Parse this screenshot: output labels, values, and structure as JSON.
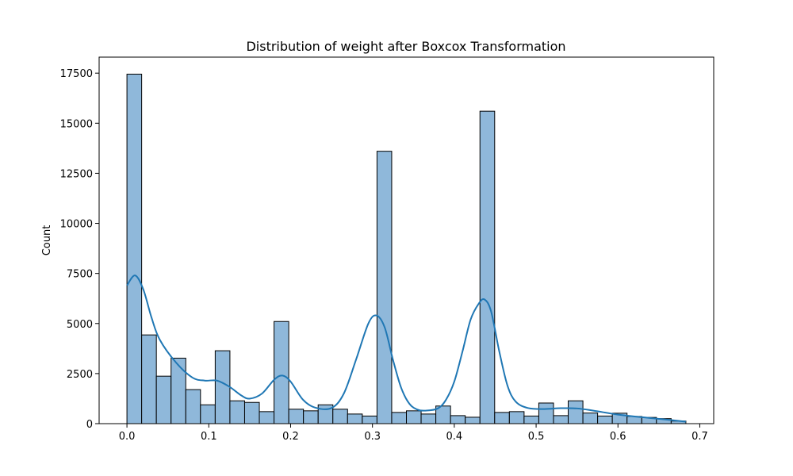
{
  "chart_data": {
    "type": "bar",
    "subtype": "histogram-with-kde",
    "title": "Distribution of weight after Boxcox Transformation",
    "xlabel": "",
    "ylabel": "Count",
    "xlim": [
      -0.034,
      0.717
    ],
    "ylim": [
      0,
      18300
    ],
    "grid": false,
    "legend": "none",
    "colors": {
      "bar_fill": "#8fb8da",
      "bar_edge": "#000000",
      "kde_line": "#1f77b4"
    },
    "x_ticks": [
      0.0,
      0.1,
      0.2,
      0.3,
      0.4,
      0.5,
      0.6,
      0.7
    ],
    "x_tick_labels": [
      "0.0",
      "0.1",
      "0.2",
      "0.3",
      "0.4",
      "0.5",
      "0.6",
      "0.7"
    ],
    "y_ticks": [
      0,
      2500,
      5000,
      7500,
      10000,
      12500,
      15000,
      17500
    ],
    "y_tick_labels": [
      "0",
      "2500",
      "5000",
      "7500",
      "10000",
      "12500",
      "15000",
      "17500"
    ],
    "bin_range": [
      0.0,
      0.683
    ],
    "bin_count": 38,
    "counts": [
      17450,
      4430,
      2370,
      3270,
      1700,
      940,
      3640,
      1140,
      1060,
      600,
      5100,
      720,
      640,
      940,
      720,
      480,
      380,
      13600,
      560,
      640,
      480,
      880,
      400,
      320,
      15600,
      560,
      600,
      380,
      1030,
      400,
      1140,
      530,
      380,
      520,
      360,
      310,
      250,
      130
    ],
    "kde": {
      "x": [
        0.0,
        0.01,
        0.02,
        0.03,
        0.04,
        0.06,
        0.08,
        0.095,
        0.11,
        0.125,
        0.14,
        0.15,
        0.165,
        0.18,
        0.19,
        0.2,
        0.215,
        0.23,
        0.25,
        0.265,
        0.28,
        0.295,
        0.305,
        0.315,
        0.325,
        0.335,
        0.345,
        0.355,
        0.365,
        0.38,
        0.39,
        0.4,
        0.41,
        0.42,
        0.43,
        0.437,
        0.445,
        0.455,
        0.465,
        0.475,
        0.49,
        0.51,
        0.53,
        0.55,
        0.57,
        0.6,
        0.63,
        0.66,
        0.683
      ],
      "y": [
        6900,
        7400,
        6700,
        5300,
        4200,
        3050,
        2300,
        2150,
        2150,
        1850,
        1400,
        1250,
        1500,
        2200,
        2400,
        2100,
        1200,
        800,
        780,
        1500,
        3200,
        5000,
        5400,
        4800,
        3200,
        1800,
        1000,
        700,
        650,
        760,
        1200,
        2100,
        3600,
        5200,
        6000,
        6200,
        5600,
        3600,
        1900,
        1100,
        780,
        730,
        770,
        760,
        650,
        450,
        320,
        200,
        100
      ]
    }
  }
}
